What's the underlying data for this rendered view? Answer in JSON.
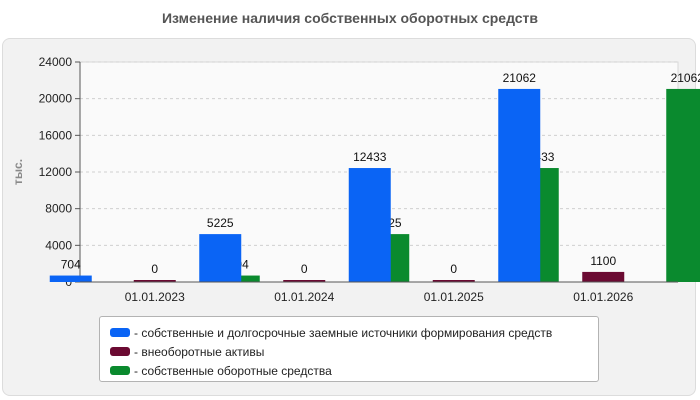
{
  "chart_data": {
    "type": "bar",
    "title": "Изменение наличия собственных оборотных средств",
    "ylabel": "тыс.",
    "ylim": [
      0,
      24000
    ],
    "yticks": [
      0,
      4000,
      8000,
      12000,
      16000,
      20000,
      24000
    ],
    "categories": [
      "01.01.2023",
      "01.01.2024",
      "01.01.2025",
      "01.01.2026"
    ],
    "grid": true,
    "legend_position": "bottom",
    "series": [
      {
        "name": "собственные и долгосрочные заемные источники формирования средств",
        "color": "#0a64f5",
        "values": [
          704,
          5225,
          12433,
          21062
        ]
      },
      {
        "name": "внеоборотные активы",
        "color": "#6b0a32",
        "values": [
          0,
          0,
          0,
          1100
        ]
      },
      {
        "name": "собственные оборотные средства",
        "color": "#0a8a2e",
        "values": [
          704,
          5225,
          12433,
          21062
        ]
      }
    ]
  }
}
